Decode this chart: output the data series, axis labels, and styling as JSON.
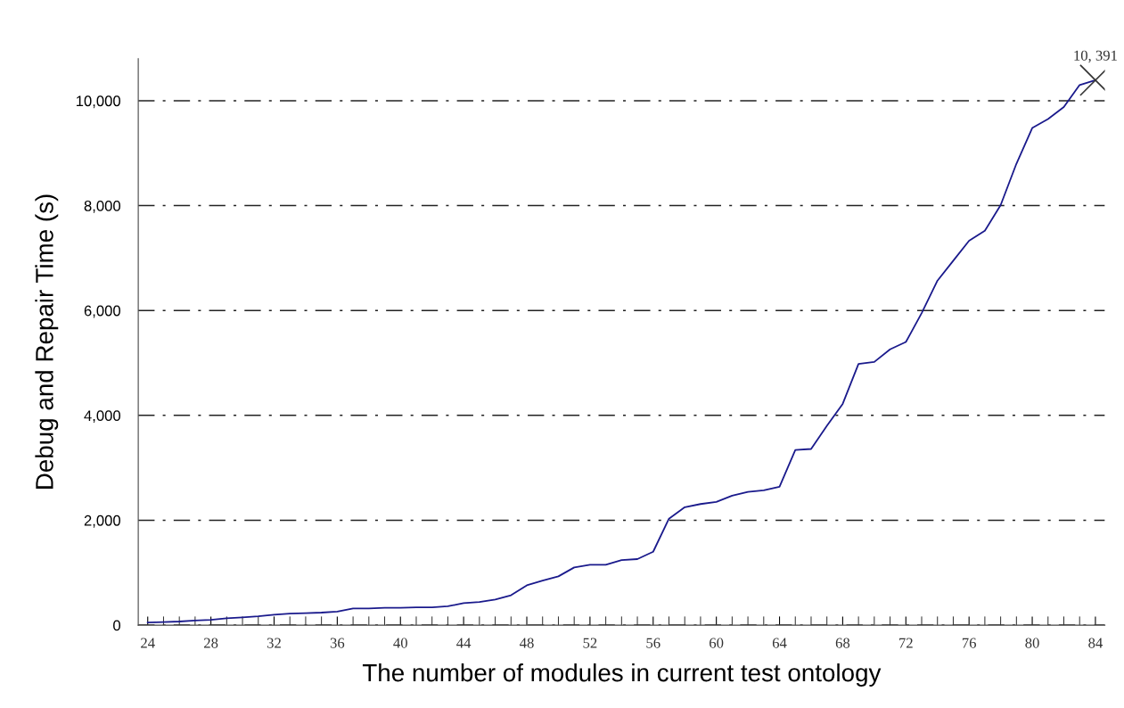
{
  "chart_data": {
    "type": "line",
    "xlabel": "The number of modules in current test ontology",
    "ylabel": "Debug and Repair Time (s)",
    "xlim": [
      23.4,
      84.6
    ],
    "xticks": [
      24,
      28,
      32,
      36,
      40,
      44,
      48,
      52,
      56,
      60,
      64,
      68,
      72,
      76,
      80,
      84
    ],
    "ylim": [
      0,
      10800
    ],
    "yticks": [
      0,
      {
        "value": 2000,
        "label": "2,000"
      },
      {
        "value": 4000,
        "label": "4,000"
      },
      {
        "value": 6000,
        "label": "6,000"
      },
      {
        "value": 8000,
        "label": "8,000"
      },
      {
        "value": 10000,
        "label": "10,000"
      }
    ],
    "grid": "y",
    "legend": false,
    "series": [
      {
        "color": "#1a1a8c",
        "marker": "none",
        "line_style": "solid",
        "x": [
          24,
          25,
          26,
          27,
          28,
          29,
          30,
          31,
          32,
          33,
          34,
          35,
          36,
          37,
          38,
          39,
          40,
          41,
          42,
          43,
          44,
          45,
          46,
          47,
          48,
          49,
          50,
          51,
          52,
          53,
          54,
          55,
          56,
          57,
          58,
          59,
          60,
          61,
          62,
          63,
          64,
          65,
          66,
          67,
          68,
          69,
          70,
          71,
          72,
          73,
          74,
          75,
          76,
          77,
          78,
          79,
          80,
          81,
          82,
          83,
          84
        ],
        "values": [
          50,
          60,
          70,
          90,
          100,
          130,
          150,
          170,
          200,
          220,
          230,
          240,
          260,
          320,
          320,
          330,
          330,
          340,
          340,
          360,
          420,
          440,
          490,
          570,
          760,
          850,
          930,
          1100,
          1150,
          1150,
          1240,
          1260,
          1400,
          2030,
          2250,
          2310,
          2350,
          2470,
          2540,
          2570,
          2640,
          3340,
          3360,
          3800,
          4220,
          4980,
          5020,
          5260,
          5400,
          5950,
          6570,
          6950,
          7330,
          7520,
          8010,
          8800,
          9480,
          9650,
          9880,
          10300,
          10391
        ]
      },
      {
        "type": "scatter",
        "color": "#333333",
        "marker": "cross",
        "x": [
          84
        ],
        "values": [
          10391
        ]
      }
    ],
    "annotations": [
      {
        "text": "10, 391",
        "x": 84,
        "y": 10391
      }
    ]
  }
}
